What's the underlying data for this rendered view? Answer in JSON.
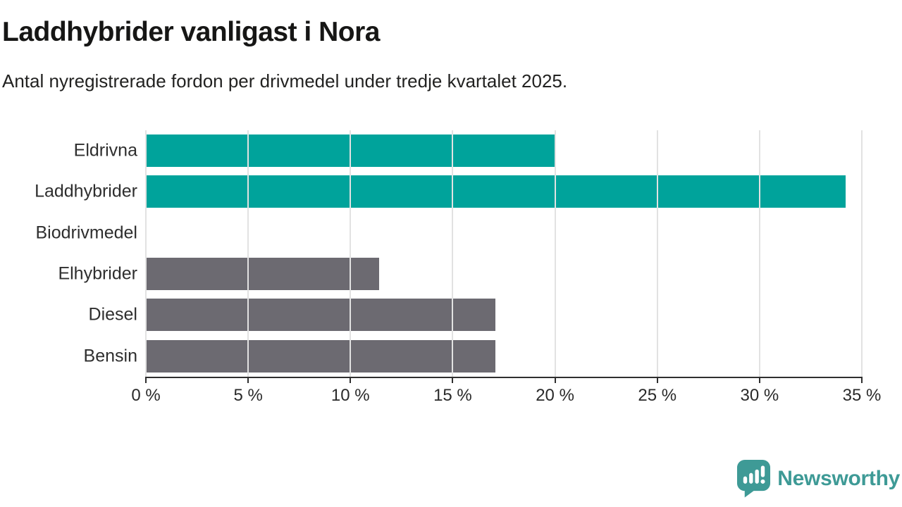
{
  "header": {
    "title": "Laddhybrider vanligast i Nora",
    "subtitle": "Antal nyregistrerade fordon per drivmedel under tredje kvartalet 2025."
  },
  "chart_data": {
    "type": "bar",
    "orientation": "horizontal",
    "title": "Laddhybrider vanligast i Nora",
    "subtitle": "Antal nyregistrerade fordon per drivmedel under tredje kvartalet 2025.",
    "categories": [
      "Eldrivna",
      "Laddhybrider",
      "Biodrivmedel",
      "Elhybrider",
      "Diesel",
      "Bensin"
    ],
    "values": [
      20,
      34.2,
      0,
      11.4,
      17.1,
      17.1
    ],
    "unit": "%",
    "bar_colors": [
      "#00A39B",
      "#00A39B",
      "#00A39B",
      "#6C6A71",
      "#6C6A71",
      "#6C6A71"
    ],
    "xlim": [
      0,
      35
    ],
    "x_tick_labels": [
      "0 %",
      "5 %",
      "10 %",
      "15 %",
      "20 %",
      "25 %",
      "30 %",
      "35 %"
    ],
    "grid": true,
    "legend": false
  },
  "colors": {
    "teal_series": "#00A39B",
    "gray_series": "#6C6A71",
    "gridline": "#E2E2E2",
    "axis": "#2F2F2F"
  },
  "footer": {
    "brand_name": "Newsworthy",
    "brand_color": "#3E9A96",
    "logo_icon": "speech-bubble-bar-chart-icon"
  }
}
